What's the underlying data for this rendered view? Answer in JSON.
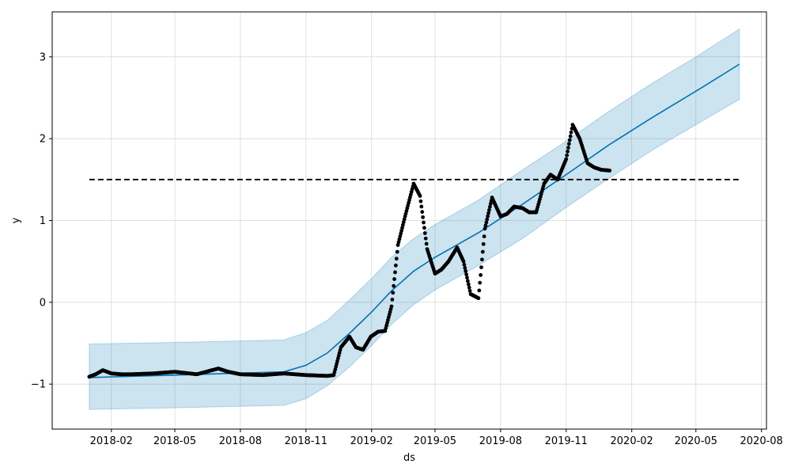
{
  "chart_data": {
    "type": "line",
    "title": "",
    "xlabel": "ds",
    "ylabel": "y",
    "x_range": [
      "2017-11-10",
      "2020-08-08"
    ],
    "ylim": [
      -1.55,
      3.55
    ],
    "grid": true,
    "x_ticks": [
      {
        "date": "2018-02-01",
        "label": "2018-02"
      },
      {
        "date": "2018-05-01",
        "label": "2018-05"
      },
      {
        "date": "2018-08-01",
        "label": "2018-08"
      },
      {
        "date": "2018-11-01",
        "label": "2018-11"
      },
      {
        "date": "2019-02-01",
        "label": "2019-02"
      },
      {
        "date": "2019-05-01",
        "label": "2019-05"
      },
      {
        "date": "2019-08-01",
        "label": "2019-08"
      },
      {
        "date": "2019-11-01",
        "label": "2019-11"
      },
      {
        "date": "2020-02-01",
        "label": "2020-02"
      },
      {
        "date": "2020-05-01",
        "label": "2020-05"
      },
      {
        "date": "2020-08-01",
        "label": "2020-08"
      }
    ],
    "y_ticks": [
      {
        "value": -1,
        "label": "−1"
      },
      {
        "value": 0,
        "label": "0"
      },
      {
        "value": 1,
        "label": "1"
      },
      {
        "value": 2,
        "label": "2"
      },
      {
        "value": 3,
        "label": "3"
      }
    ],
    "colors": {
      "trend": "#0072B2",
      "band": "#0072B2",
      "points": "#000000",
      "cap": "#000000",
      "grid": "#d9d9d9"
    },
    "cap_line": {
      "value": 1.5,
      "x_start": "2018-01-01",
      "x_end": "2020-07-01",
      "style": "dashed"
    },
    "forecast": {
      "x": [
        "2018-01-01",
        "2018-05-01",
        "2018-10-01",
        "2018-11-01",
        "2018-12-01",
        "2019-01-01",
        "2019-02-01",
        "2019-03-01",
        "2019-04-01",
        "2019-05-01",
        "2019-07-01",
        "2019-09-01",
        "2019-11-01",
        "2020-01-01",
        "2020-03-01",
        "2020-05-01",
        "2020-07-01"
      ],
      "yhat": [
        -0.92,
        -0.89,
        -0.85,
        -0.77,
        -0.62,
        -0.38,
        -0.12,
        0.14,
        0.38,
        0.55,
        0.85,
        1.2,
        1.56,
        1.93,
        2.26,
        2.58,
        2.91
      ],
      "yhat_lower": [
        -1.31,
        -1.29,
        -1.26,
        -1.18,
        -1.02,
        -0.79,
        -0.53,
        -0.27,
        -0.03,
        0.15,
        0.45,
        0.78,
        1.16,
        1.52,
        1.86,
        2.17,
        2.48
      ],
      "yhat_upper": [
        -0.51,
        -0.49,
        -0.46,
        -0.37,
        -0.22,
        0.03,
        0.29,
        0.55,
        0.78,
        0.95,
        1.25,
        1.62,
        1.97,
        2.34,
        2.68,
        3.0,
        3.34
      ]
    },
    "observed": {
      "x": [
        "2018-01-01",
        "2018-01-10",
        "2018-01-20",
        "2018-02-01",
        "2018-02-15",
        "2018-03-01",
        "2018-04-01",
        "2018-05-01",
        "2018-06-01",
        "2018-07-01",
        "2018-07-15",
        "2018-08-01",
        "2018-09-01",
        "2018-10-01",
        "2018-11-01",
        "2018-12-01",
        "2018-12-10",
        "2018-12-20",
        "2019-01-01",
        "2019-01-10",
        "2019-01-20",
        "2019-01-31",
        "2019-02-10",
        "2019-02-20",
        "2019-03-01",
        "2019-03-10",
        "2019-03-20",
        "2019-04-01",
        "2019-04-10",
        "2019-04-20",
        "2019-05-01",
        "2019-05-10",
        "2019-05-20",
        "2019-06-01",
        "2019-06-10",
        "2019-06-20",
        "2019-07-01",
        "2019-07-10",
        "2019-07-20",
        "2019-08-01",
        "2019-08-10",
        "2019-08-20",
        "2019-09-01",
        "2019-09-10",
        "2019-09-20",
        "2019-10-01",
        "2019-10-10",
        "2019-10-20",
        "2019-11-01",
        "2019-11-10",
        "2019-11-20",
        "2019-12-01",
        "2019-12-10",
        "2019-12-20",
        "2020-01-01"
      ],
      "y": [
        -0.91,
        -0.88,
        -0.83,
        -0.87,
        -0.88,
        -0.88,
        -0.87,
        -0.85,
        -0.88,
        -0.81,
        -0.85,
        -0.88,
        -0.89,
        -0.87,
        -0.89,
        -0.9,
        -0.89,
        -0.55,
        -0.42,
        -0.55,
        -0.58,
        -0.42,
        -0.36,
        -0.35,
        -0.05,
        0.7,
        1.05,
        1.45,
        1.3,
        0.65,
        0.35,
        0.4,
        0.5,
        0.67,
        0.5,
        0.1,
        0.05,
        0.9,
        1.28,
        1.05,
        1.08,
        1.17,
        1.15,
        1.1,
        1.1,
        1.45,
        1.56,
        1.5,
        1.75,
        2.17,
        2.0,
        1.7,
        1.65,
        1.62,
        1.61
      ]
    }
  }
}
